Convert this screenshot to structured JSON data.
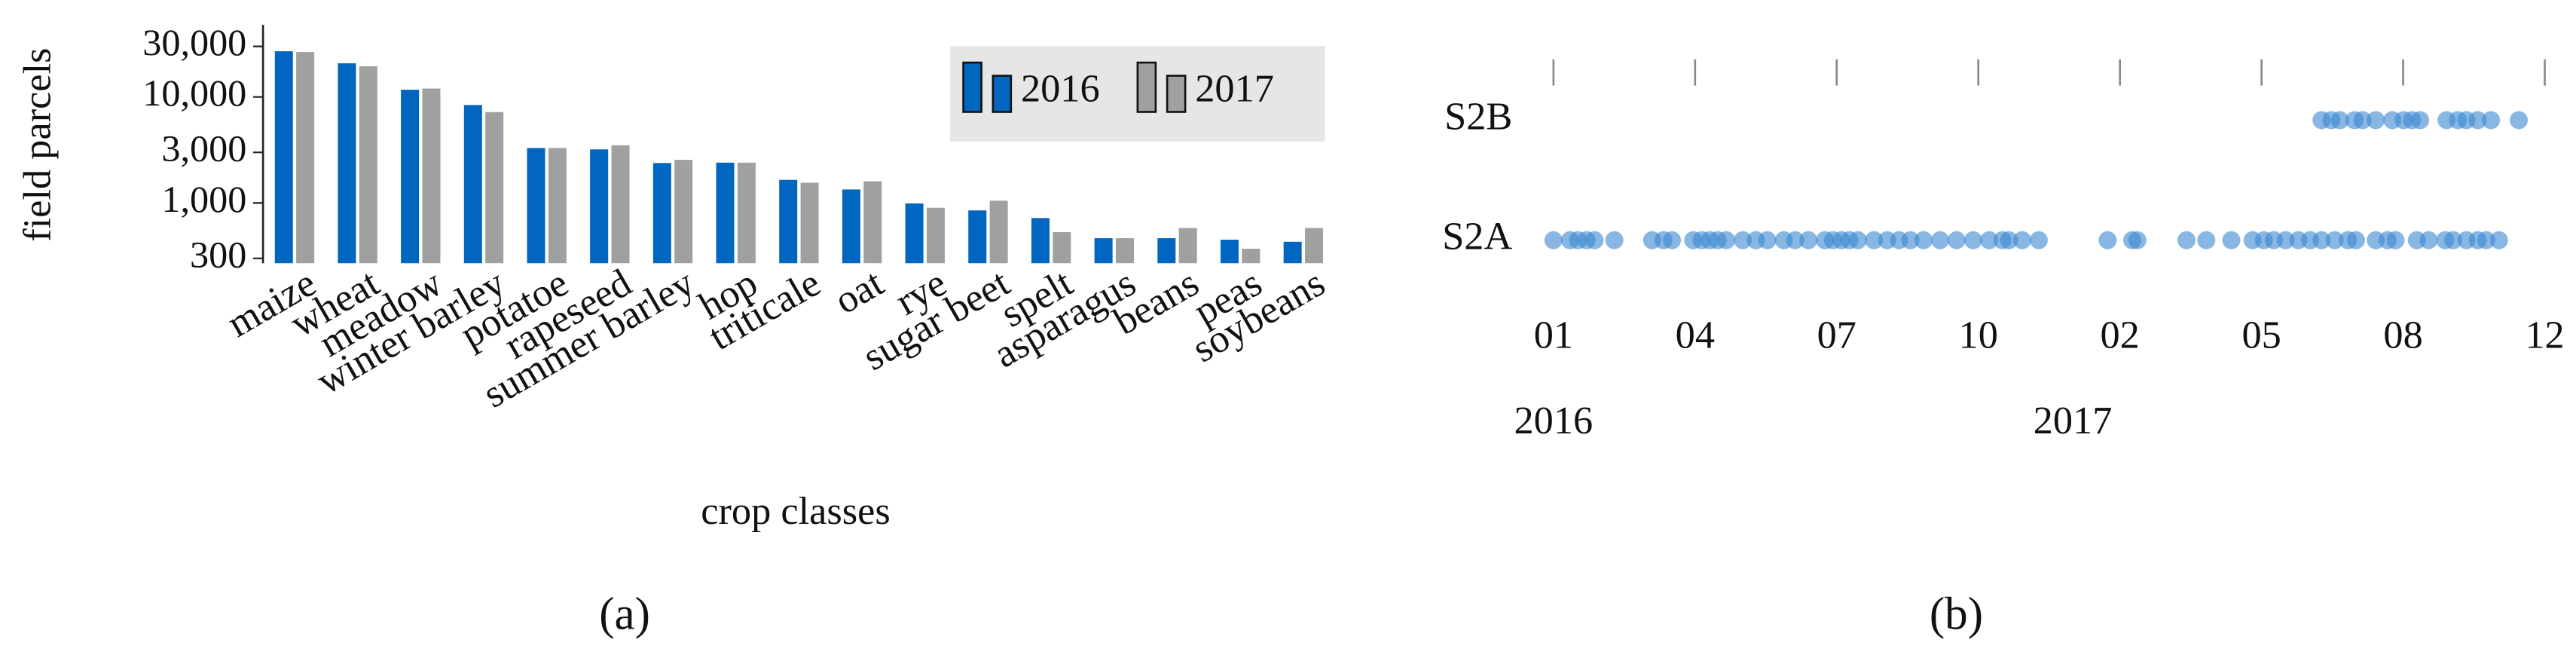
{
  "chart_data": [
    {
      "type": "bar",
      "label": "(a)",
      "ylabel": "field parcels",
      "xlabel": "crop classes",
      "log_scale": true,
      "legend": "top-right",
      "categories": [
        "maize",
        "wheat",
        "meadow",
        "winter barley",
        "potatoe",
        "rapeseed",
        "summer barley",
        "hop",
        "triticale",
        "oat",
        "rye",
        "sugar beet",
        "spelt",
        "asparagus",
        "beans",
        "peas",
        "soybeans"
      ],
      "series": [
        {
          "name": "2016",
          "color": "#0066c0",
          "values": [
            27000,
            20800,
            11700,
            8400,
            3300,
            3200,
            2380,
            2400,
            1650,
            1340,
            990,
            850,
            720,
            465,
            465,
            450,
            430
          ]
        },
        {
          "name": "2017",
          "color": "#a0a0a0",
          "values": [
            26500,
            19500,
            12000,
            7200,
            3300,
            3500,
            2550,
            2400,
            1550,
            1600,
            900,
            1050,
            530,
            465,
            580,
            370,
            580
          ]
        }
      ],
      "ylim": [
        270,
        48000
      ],
      "yticks": [
        {
          "value": 30000,
          "label": "30,000"
        },
        {
          "value": 10000,
          "label": "10,000"
        },
        {
          "value": 3000,
          "label": "3,000"
        },
        {
          "value": 1000,
          "label": "1,000"
        },
        300
      ]
    },
    {
      "type": "scatter",
      "label": "(b)",
      "xlim": [
        0,
        21
      ],
      "xticks": [
        {
          "value": 0,
          "label": "01"
        },
        {
          "value": 3,
          "label": "04"
        },
        {
          "value": 6,
          "label": "07"
        },
        {
          "value": 9,
          "label": "10"
        },
        {
          "value": 12,
          "label": "02"
        },
        {
          "value": 15,
          "label": "05"
        },
        {
          "value": 18,
          "label": "08"
        },
        {
          "value": 21,
          "label": "12"
        }
      ],
      "year_labels": [
        {
          "value": 0,
          "label": "2016"
        },
        {
          "value": 11,
          "label": "2017"
        }
      ],
      "series": [
        {
          "name": "S2A",
          "color": "#3a87d0",
          "x": [
            0,
            0.35,
            0.52,
            0.7,
            0.87,
            1.29,
            2.09,
            2.33,
            2.51,
            2.96,
            3.14,
            3.31,
            3.48,
            3.66,
            4.01,
            4.29,
            4.53,
            4.88,
            5.12,
            5.4,
            5.75,
            5.92,
            6.1,
            6.27,
            6.45,
            6.79,
            7.07,
            7.32,
            7.56,
            7.84,
            8.19,
            8.54,
            8.89,
            9.23,
            9.51,
            9.65,
            9.93,
            10.28,
            11.74,
            12.26,
            12.37,
            13.41,
            13.83,
            14.36,
            14.81,
            15.05,
            15.26,
            15.51,
            15.78,
            16.03,
            16.27,
            16.55,
            16.83,
            17.0,
            17.42,
            17.67,
            17.84,
            18.29,
            18.54,
            18.89,
            19.06,
            19.34,
            19.58,
            19.76,
            20.03
          ]
        },
        {
          "name": "S2B",
          "color": "#3a87d0",
          "x": [
            16.27,
            16.48,
            16.66,
            16.97,
            17.14,
            17.42,
            17.77,
            18.01,
            18.19,
            18.36,
            18.92,
            19.16,
            19.34,
            19.58,
            19.86,
            20.45
          ]
        }
      ]
    }
  ]
}
